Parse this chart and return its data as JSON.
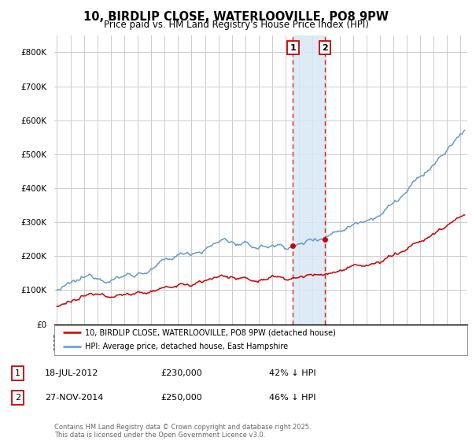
{
  "title": "10, BIRDLIP CLOSE, WATERLOOVILLE, PO8 9PW",
  "subtitle": "Price paid vs. HM Land Registry's House Price Index (HPI)",
  "title_fontsize": 10.5,
  "subtitle_fontsize": 8.5,
  "hpi_color": "#6699cc",
  "price_color": "#cc0000",
  "background_color": "#ffffff",
  "plot_bg_color": "#ffffff",
  "grid_color": "#cccccc",
  "ylim": [
    0,
    850000
  ],
  "yticks": [
    0,
    100000,
    200000,
    300000,
    400000,
    500000,
    600000,
    700000,
    800000
  ],
  "ytick_labels": [
    "£0",
    "£100K",
    "£200K",
    "£300K",
    "£400K",
    "£500K",
    "£600K",
    "£700K",
    "£800K"
  ],
  "xlim_start": 1994.8,
  "xlim_end": 2025.5,
  "transaction1_date": 2012.54,
  "transaction1_price": 230000,
  "transaction1_label": "1",
  "transaction1_date_str": "18-JUL-2012",
  "transaction1_pct": "42% ↓ HPI",
  "transaction2_date": 2014.91,
  "transaction2_price": 250000,
  "transaction2_label": "2",
  "transaction2_date_str": "27-NOV-2014",
  "transaction2_pct": "46% ↓ HPI",
  "legend_line1": "10, BIRDLIP CLOSE, WATERLOOVILLE, PO8 9PW (detached house)",
  "legend_line2": "HPI: Average price, detached house, East Hampshire",
  "footer": "Contains HM Land Registry data © Crown copyright and database right 2025.\nThis data is licensed under the Open Government Licence v3.0.",
  "shade_color": "#d8e8f5",
  "vline_color": "#dd2222",
  "annotation_box_color": "#cc0000"
}
